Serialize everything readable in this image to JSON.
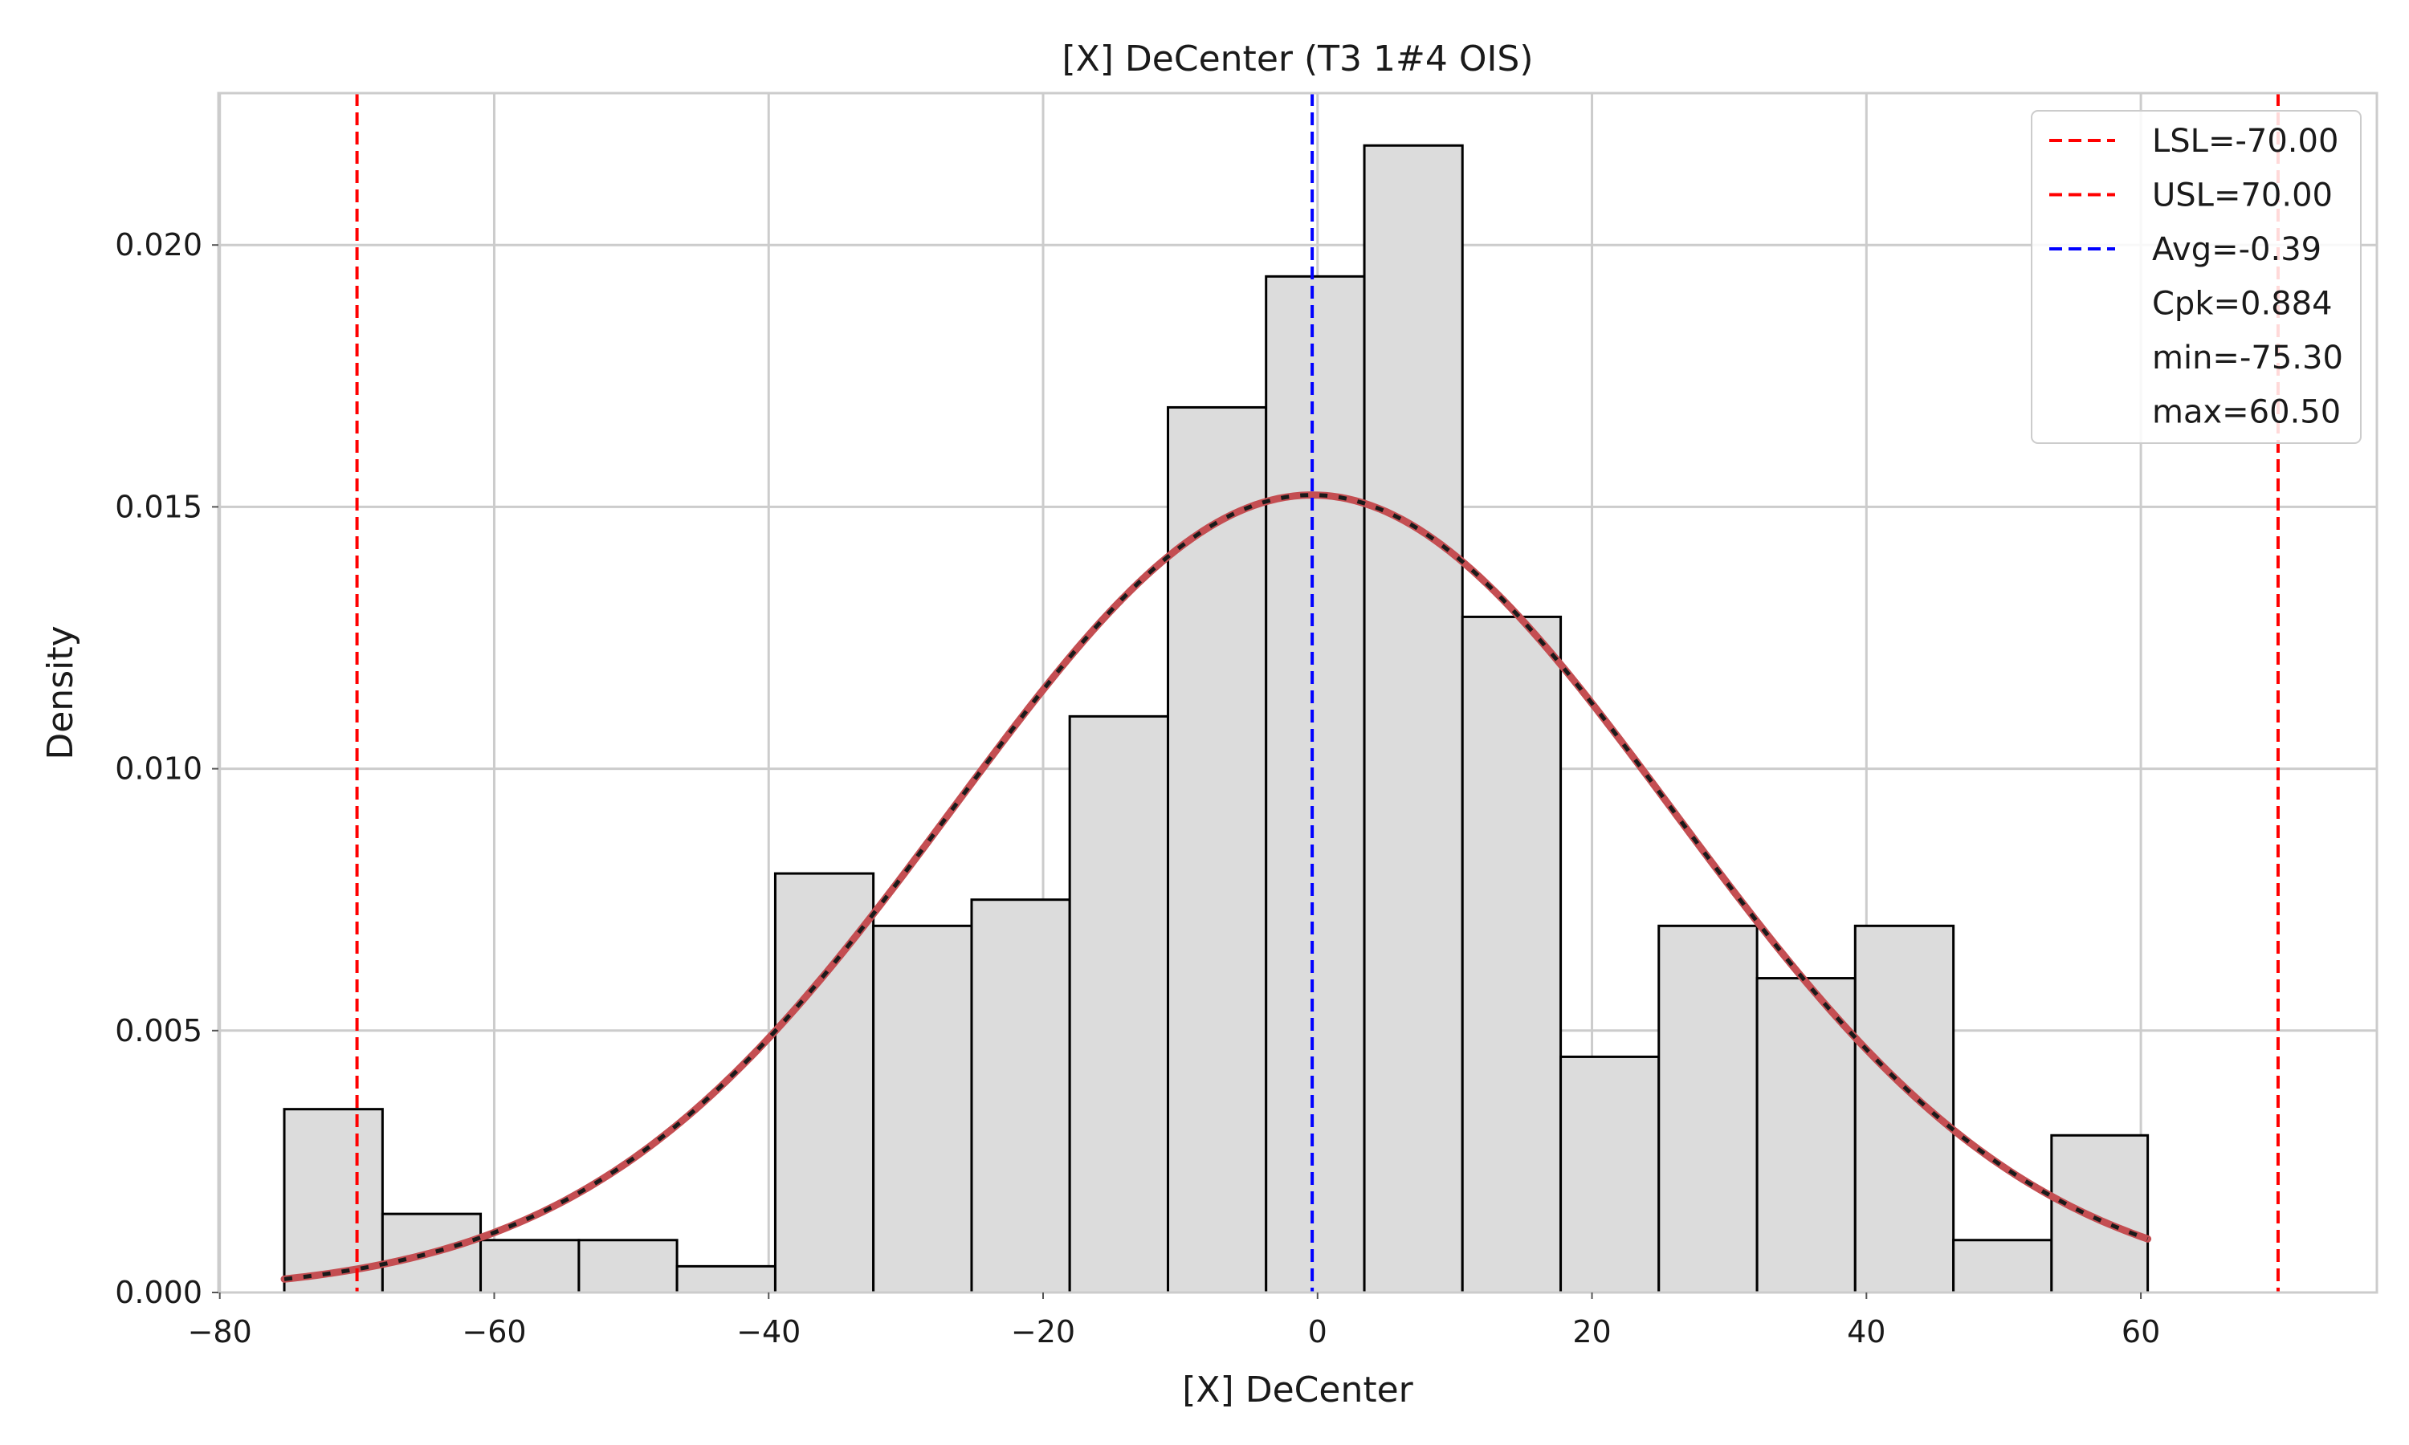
{
  "chart_data": {
    "type": "histogram",
    "title": "[X] DeCenter (T3 1#4 OIS)",
    "xlabel": "[X] DeCenter",
    "ylabel": "Density",
    "xlim": [
      -80.1,
      77.2
    ],
    "ylim": [
      0,
      0.0229
    ],
    "grid": true,
    "legend_position": "top-right",
    "x_ticks": [
      -80,
      -60,
      -40,
      -20,
      0,
      20,
      40,
      60
    ],
    "x_tick_labels": [
      "−80",
      "−60",
      "−40",
      "−20",
      "0",
      "20",
      "40",
      "60"
    ],
    "y_ticks": [
      0,
      0.005,
      0.01,
      0.015,
      0.02
    ],
    "y_tick_labels": [
      "0.000",
      "0.005",
      "0.010",
      "0.015",
      "0.020"
    ],
    "bin_edges": [
      -75.3,
      -68.14,
      -60.99,
      -53.83,
      -46.68,
      -39.52,
      -32.37,
      -25.21,
      -18.06,
      -10.9,
      -3.75,
      3.41,
      10.56,
      17.72,
      24.87,
      32.03,
      39.18,
      46.34,
      53.49,
      60.5
    ],
    "densities": [
      0.0035,
      0.0015,
      0.001,
      0.001,
      0.0005,
      0.008,
      0.007,
      0.0075,
      0.011,
      0.0169,
      0.0194,
      0.0219,
      0.0129,
      0.0045,
      0.007,
      0.006,
      0.007,
      0.001,
      0.003
    ],
    "fit": {
      "type": "normal",
      "mean": -0.39,
      "std": 26.2,
      "x_range": [
        -75.3,
        60.5
      ]
    },
    "lines": [
      {
        "name": "LSL=-70.00",
        "x": -70.0,
        "color": "#ff0000"
      },
      {
        "name": "USL=70.00",
        "x": 70.0,
        "color": "#ff0000"
      },
      {
        "name": "Avg=-0.39",
        "x": -0.39,
        "color": "#0000ff"
      }
    ],
    "legend": [
      "LSL=-70.00",
      "USL=70.00",
      "Avg=-0.39",
      "Cpk=0.884",
      "min=-75.30",
      "max=60.50"
    ],
    "colors": {
      "bar_fill": "#dcdcdc",
      "bar_edge": "#000000",
      "fit_line": "#c44e52",
      "fit_dash": "#1a1a1a",
      "grid": "#cccccc",
      "spine": "#cccccc"
    }
  }
}
